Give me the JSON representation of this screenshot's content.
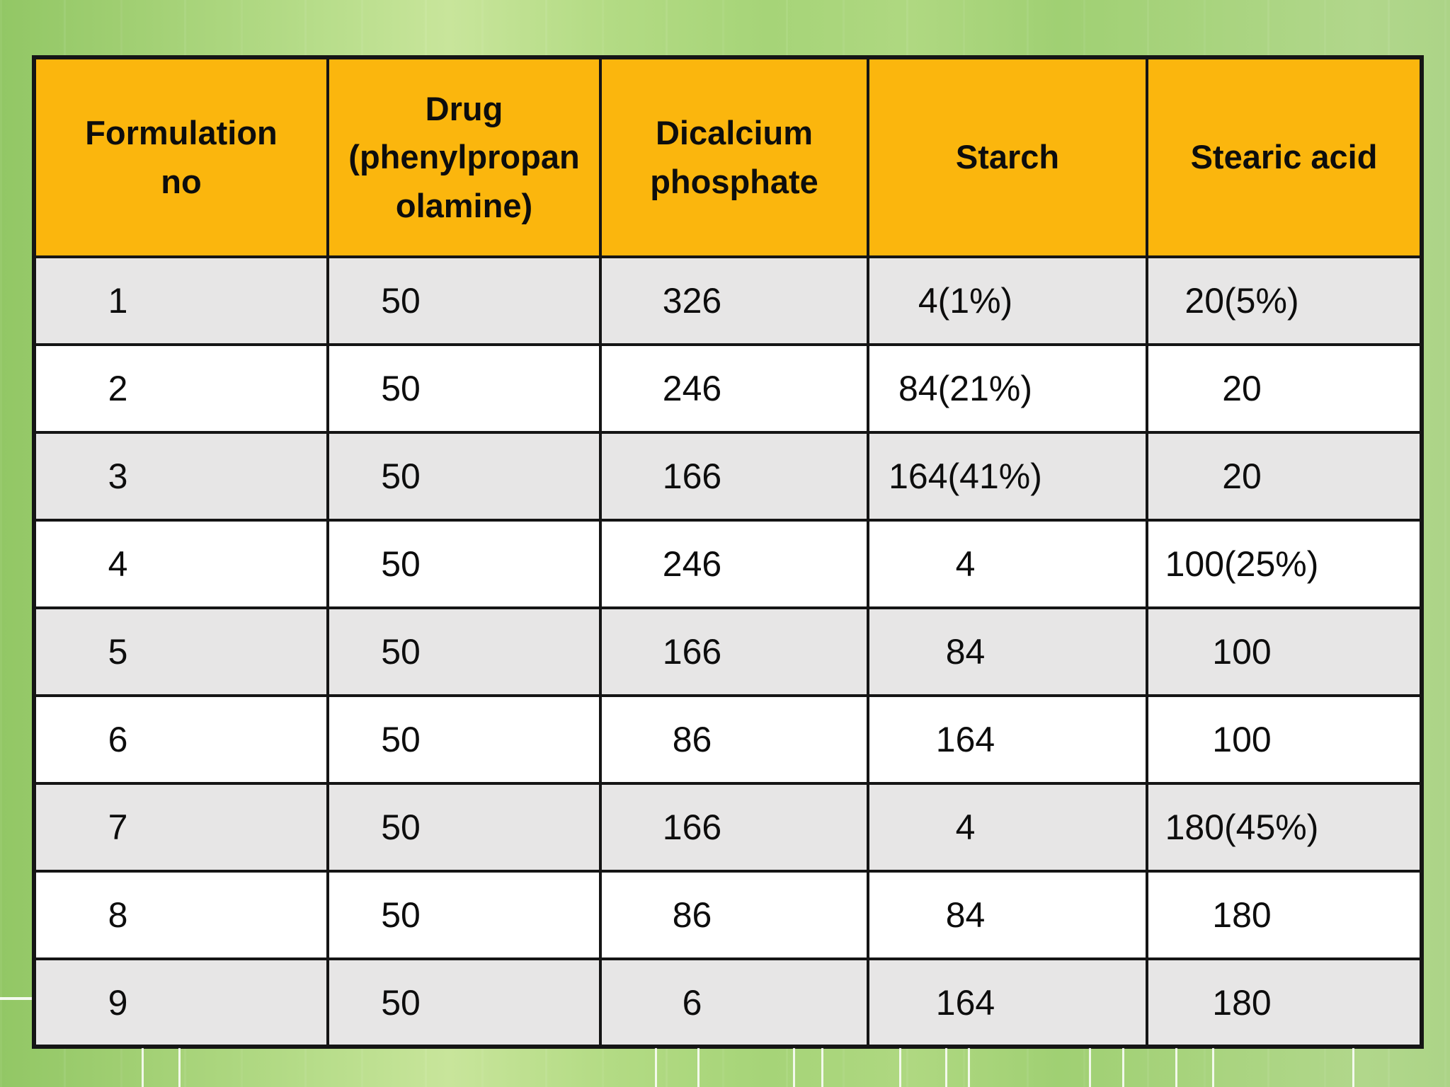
{
  "slide": {
    "background_left": "#92C765",
    "background_center": "#C8E59B",
    "background_right": "#ACD487"
  },
  "table": {
    "border_color": "#151515",
    "header_bg": "#FBB60D",
    "row_bg": "#FFFFFF",
    "row_alt_bg": "#E7E6E6",
    "columns": [
      "Formulation\nno",
      "Drug\n(phenylpropan\nolamine)",
      "Dicalcium\nphosphate",
      "Starch",
      "Stearic acid"
    ],
    "rows": [
      [
        "1",
        "50",
        "326",
        "4(1%)",
        "20(5%)"
      ],
      [
        "2",
        "50",
        "246",
        "84(21%)",
        "20"
      ],
      [
        "3",
        "50",
        "166",
        "164(41%)",
        "20"
      ],
      [
        "4",
        "50",
        "246",
        "4",
        "100(25%)"
      ],
      [
        "5",
        "50",
        "166",
        "84",
        "100"
      ],
      [
        "6",
        "50",
        "86",
        "164",
        "100"
      ],
      [
        "7",
        "50",
        "166",
        "4",
        "180(45%)"
      ],
      [
        "8",
        "50",
        "86",
        "84",
        "180"
      ],
      [
        "9",
        "50",
        "6",
        "164",
        "180"
      ]
    ]
  }
}
